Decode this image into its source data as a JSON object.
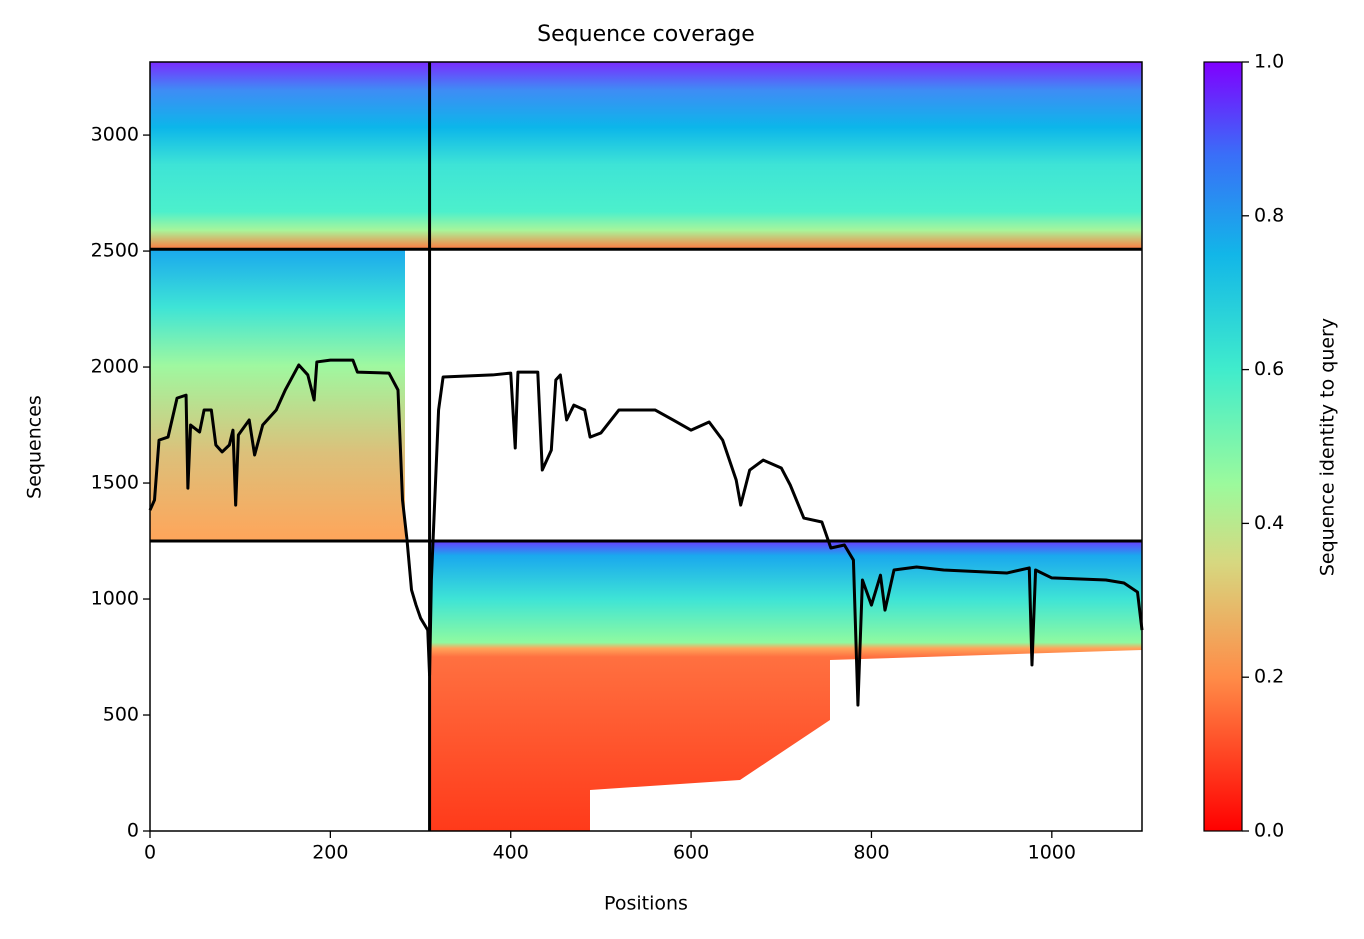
{
  "chart_data": {
    "type": "line",
    "title": "Sequence coverage",
    "xlabel": "Positions",
    "ylabel": "Sequences",
    "xlim": [
      0,
      1100
    ],
    "ylim": [
      0,
      3315
    ],
    "xticks": [
      0,
      200,
      400,
      600,
      800,
      1000
    ],
    "yticks": [
      0,
      500,
      1000,
      1500,
      2000,
      2500,
      3000
    ],
    "chain_breaks_x": [
      310
    ],
    "chain_breaks_y": [
      1250,
      2508
    ],
    "colorbar": {
      "label": "Sequence identity to query",
      "lim": [
        0,
        1
      ],
      "ticks": [
        {
          "value": 0,
          "label": "0.0"
        },
        {
          "value": 0.2,
          "label": "0.2"
        },
        {
          "value": 0.4,
          "label": "0.4"
        },
        {
          "value": 0.6,
          "label": "0.6"
        },
        {
          "value": 0.8,
          "label": "0.8"
        },
        {
          "value": 1,
          "label": "1.0"
        }
      ]
    },
    "series": [
      {
        "color": "#000000",
        "x": [
          0,
          5,
          10,
          20,
          30,
          40,
          42,
          45,
          55,
          60,
          68,
          73,
          80,
          88,
          92,
          95,
          98,
          110,
          116,
          125,
          140,
          150,
          165,
          175,
          182,
          185,
          200,
          225,
          230,
          265,
          275,
          280,
          285,
          290,
          295,
          300,
          308,
          310,
          312,
          320,
          325,
          380,
          400,
          405,
          408,
          430,
          435,
          445,
          450,
          455,
          462,
          470,
          482,
          488,
          500,
          520,
          560,
          580,
          600,
          620,
          635,
          650,
          655,
          665,
          680,
          700,
          710,
          725,
          745,
          755,
          770,
          780,
          785,
          790,
          800,
          810,
          815,
          825,
          850,
          880,
          950,
          975,
          978,
          982,
          1000,
          1060,
          1080,
          1095,
          1100
        ],
        "values": [
          1383,
          1427,
          1685,
          1698,
          1866,
          1879,
          1478,
          1750,
          1720,
          1815,
          1815,
          1664,
          1634,
          1664,
          1728,
          1405,
          1707,
          1772,
          1621,
          1750,
          1815,
          1901,
          2009,
          1966,
          1858,
          2022,
          2030,
          2030,
          1978,
          1974,
          1901,
          1427,
          1254,
          1039,
          974,
          918,
          866,
          672,
          1082,
          1815,
          1957,
          1966,
          1974,
          1651,
          1978,
          1978,
          1556,
          1642,
          1944,
          1966,
          1772,
          1836,
          1815,
          1698,
          1716,
          1815,
          1815,
          1772,
          1728,
          1763,
          1685,
          1513,
          1405,
          1556,
          1599,
          1565,
          1491,
          1349,
          1332,
          1220,
          1233,
          1168,
          543,
          1082,
          974,
          1103,
          952,
          1125,
          1138,
          1125,
          1112,
          1134,
          716,
          1125,
          1091,
          1082,
          1069,
          1030,
          866
        ]
      }
    ]
  }
}
